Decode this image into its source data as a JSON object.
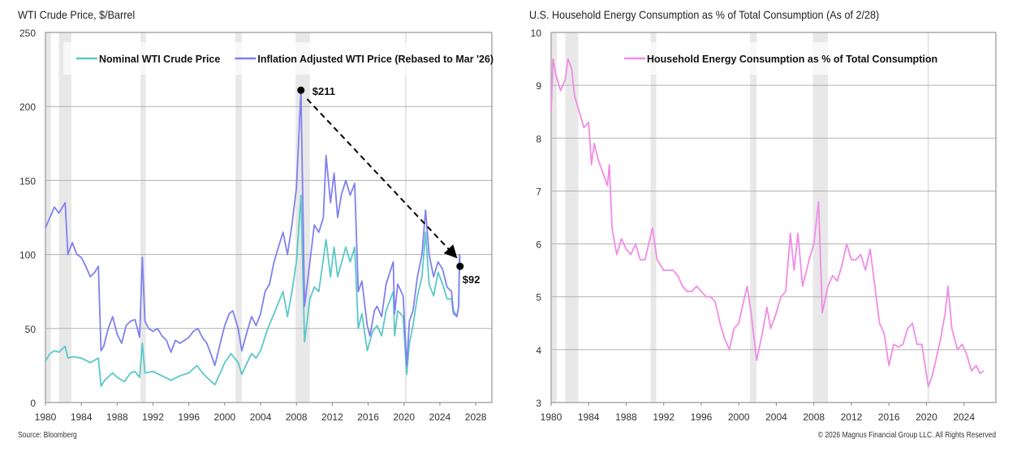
{
  "chart_data": [
    {
      "type": "line",
      "title": "WTI Crude Price, $/Barrel",
      "source": "Source: Bloomberg",
      "xlim": [
        1980,
        2029.8
      ],
      "ylim": [
        0,
        250
      ],
      "xticks": [
        1980,
        1984,
        1988,
        1992,
        1996,
        2000,
        2004,
        2008,
        2012,
        2016,
        2020,
        2024,
        2028
      ],
      "yticks": [
        0,
        50,
        100,
        150,
        200,
        250
      ],
      "grid": true,
      "legend_position": "top",
      "recessions": [
        [
          1980.0,
          1980.6
        ],
        [
          1981.5,
          1982.9
        ],
        [
          1990.6,
          1991.2
        ],
        [
          2001.2,
          2001.9
        ],
        [
          2007.9,
          2009.5
        ],
        [
          2020.1,
          2020.3
        ]
      ],
      "annotations": [
        {
          "label": "$211",
          "x": 2008.5,
          "y": 211
        },
        {
          "label": "$92",
          "x": 2026.25,
          "y": 92
        }
      ],
      "arrow": {
        "from": [
          2009.2,
          205
        ],
        "to": [
          2025.7,
          99
        ]
      },
      "series": [
        {
          "name": "Nominal WTI Crude Price",
          "color": "#5bc8c8",
          "x": [
            1980,
            1980.5,
            1981,
            1981.5,
            1982.2,
            1982.5,
            1983,
            1984,
            1985,
            1985.9,
            1986.2,
            1986.6,
            1987.5,
            1988,
            1988.8,
            1989.5,
            1990,
            1990.5,
            1990.8,
            1991.1,
            1992,
            1993,
            1994,
            1995,
            1996,
            1996.9,
            1997.5,
            1998,
            1998.9,
            1999.5,
            2000,
            2000.7,
            2001.5,
            2001.9,
            2002.5,
            2003,
            2003.5,
            2004,
            2004.8,
            2005.5,
            2006.5,
            2007,
            2007.5,
            2008,
            2008.5,
            2008.9,
            2009.5,
            2010,
            2010.5,
            2011.3,
            2011.8,
            2012.2,
            2012.6,
            2013.5,
            2014,
            2014.5,
            2014.9,
            2015.3,
            2015.9,
            2016.5,
            2017,
            2017.5,
            2018,
            2018.8,
            2018.95,
            2019.3,
            2019.9,
            2020.3,
            2020.6,
            2021,
            2021.5,
            2022,
            2022.4,
            2022.8,
            2023.3,
            2023.8,
            2024.3,
            2024.8,
            2025.3,
            2025.5,
            2025.9,
            2026.1,
            2026.2,
            2026.25
          ],
          "y": [
            28,
            33,
            35,
            34,
            38,
            30,
            31,
            30,
            27,
            30,
            11,
            15,
            20,
            17,
            14,
            20,
            21,
            17,
            40,
            20,
            21,
            18,
            15,
            18,
            20,
            25,
            20,
            17,
            12,
            20,
            27,
            33,
            27,
            19,
            27,
            33,
            30,
            35,
            50,
            60,
            75,
            58,
            75,
            95,
            140,
            41,
            70,
            78,
            75,
            110,
            85,
            105,
            85,
            105,
            95,
            105,
            50,
            60,
            35,
            48,
            52,
            45,
            62,
            75,
            45,
            62,
            58,
            19,
            40,
            52,
            72,
            85,
            115,
            80,
            72,
            88,
            80,
            70,
            70,
            60,
            58,
            65,
            100,
            92
          ]
        },
        {
          "name": "Inflation Adjusted WTI Price (Rebased to Mar '26)",
          "color": "#8080f0",
          "x": [
            1980,
            1980.5,
            1981,
            1981.5,
            1982.2,
            1982.5,
            1983,
            1983.5,
            1984,
            1984.5,
            1985,
            1985.5,
            1985.9,
            1986.2,
            1986.5,
            1987,
            1987.5,
            1988,
            1988.5,
            1989,
            1989.5,
            1990,
            1990.5,
            1990.8,
            1991.1,
            1991.5,
            1992,
            1992.5,
            1993,
            1993.5,
            1994,
            1994.5,
            1995,
            1995.5,
            1996,
            1996.5,
            1997,
            1997.5,
            1998,
            1998.5,
            1998.9,
            1999.5,
            2000,
            2000.5,
            2000.9,
            2001.5,
            2001.9,
            2002.5,
            2003,
            2003.5,
            2004,
            2004.5,
            2005,
            2005.5,
            2006,
            2006.5,
            2007,
            2007.5,
            2008,
            2008.5,
            2008.9,
            2009.5,
            2010,
            2010.5,
            2011,
            2011.3,
            2011.8,
            2012.2,
            2012.6,
            2013,
            2013.5,
            2014,
            2014.5,
            2014.9,
            2015.3,
            2015.9,
            2016.2,
            2016.7,
            2017,
            2017.5,
            2018,
            2018.8,
            2018.95,
            2019.3,
            2019.9,
            2020.3,
            2020.6,
            2021,
            2021.5,
            2022,
            2022.4,
            2022.8,
            2023.3,
            2023.8,
            2024.3,
            2024.8,
            2025.3,
            2025.5,
            2025.9,
            2026.1,
            2026.2,
            2026.25
          ],
          "y": [
            118,
            125,
            132,
            128,
            135,
            100,
            108,
            100,
            98,
            92,
            85,
            88,
            92,
            35,
            38,
            50,
            58,
            46,
            40,
            52,
            55,
            56,
            44,
            98,
            55,
            50,
            48,
            50,
            45,
            42,
            34,
            42,
            40,
            42,
            44,
            48,
            50,
            44,
            40,
            32,
            25,
            40,
            52,
            60,
            62,
            50,
            35,
            48,
            58,
            52,
            60,
            75,
            80,
            95,
            105,
            115,
            100,
            120,
            145,
            211,
            65,
            95,
            120,
            115,
            125,
            167,
            135,
            155,
            125,
            140,
            150,
            140,
            148,
            75,
            82,
            52,
            45,
            62,
            65,
            58,
            80,
            95,
            60,
            80,
            72,
            25,
            55,
            62,
            85,
            100,
            130,
            100,
            85,
            95,
            90,
            78,
            75,
            62,
            58,
            65,
            100,
            92
          ]
        }
      ]
    },
    {
      "type": "line",
      "title": "U.S. Household Energy Consumption as % of Total Consumption (As of 2/28)",
      "copyright": "© 2026 Magnus Financial Group LLC. All Rights Reserved",
      "xlim": [
        1980,
        2027.4
      ],
      "ylim": [
        3,
        10
      ],
      "xticks": [
        1980,
        1984,
        1988,
        1992,
        1996,
        2000,
        2004,
        2008,
        2012,
        2016,
        2020,
        2024
      ],
      "yticks": [
        3,
        4,
        5,
        6,
        7,
        8,
        9,
        10
      ],
      "grid": true,
      "legend_position": "top",
      "recessions": [
        [
          1980.0,
          1980.6
        ],
        [
          1981.5,
          1982.9
        ],
        [
          1990.6,
          1991.2
        ],
        [
          2001.2,
          2001.9
        ],
        [
          2007.9,
          2009.5
        ],
        [
          2020.1,
          2020.3
        ]
      ],
      "series": [
        {
          "name": "Household Energy Consumption as % of Total Consumption",
          "color": "#f08ce6",
          "x": [
            1980,
            1980.2,
            1980.5,
            1981,
            1981.5,
            1981.8,
            1982.2,
            1982.5,
            1983,
            1983.5,
            1984,
            1984.3,
            1984.6,
            1985,
            1985.5,
            1986,
            1986.2,
            1986.5,
            1987,
            1987.5,
            1988,
            1988.5,
            1989,
            1989.5,
            1990,
            1990.8,
            1991.3,
            1992,
            1992.5,
            1993,
            1993.5,
            1994,
            1994.5,
            1995,
            1995.5,
            1996,
            1996.5,
            1997,
            1997.5,
            1998,
            1998.5,
            1999,
            1999.5,
            2000,
            2000.5,
            2000.9,
            2001.3,
            2001.9,
            2002.5,
            2003,
            2003.4,
            2004,
            2004.5,
            2005,
            2005.5,
            2005.9,
            2006.3,
            2006.8,
            2007.5,
            2008,
            2008.5,
            2008.9,
            2009.5,
            2010,
            2010.5,
            2011,
            2011.5,
            2012,
            2012.5,
            2013,
            2013.5,
            2014,
            2014.5,
            2015,
            2015.5,
            2016,
            2016.5,
            2017,
            2017.5,
            2018,
            2018.5,
            2019,
            2019.5,
            2020.2,
            2020.6,
            2021,
            2021.5,
            2022,
            2022.3,
            2022.7,
            2023.3,
            2023.8,
            2024.3,
            2024.8,
            2025.3,
            2025.7,
            2026.1
          ],
          "y": [
            8.5,
            9.5,
            9.2,
            8.9,
            9.1,
            9.5,
            9.3,
            8.8,
            8.5,
            8.2,
            8.3,
            7.5,
            7.9,
            7.6,
            7.35,
            7.1,
            7.5,
            6.3,
            5.8,
            6.1,
            5.9,
            5.8,
            6.0,
            5.7,
            5.7,
            6.3,
            5.7,
            5.5,
            5.5,
            5.5,
            5.4,
            5.2,
            5.1,
            5.1,
            5.2,
            5.1,
            5.0,
            5.0,
            4.9,
            4.5,
            4.2,
            4.0,
            4.4,
            4.5,
            4.9,
            5.2,
            4.7,
            3.8,
            4.3,
            4.8,
            4.4,
            4.7,
            5.0,
            5.1,
            6.2,
            5.5,
            6.2,
            5.2,
            5.7,
            6.0,
            6.8,
            4.7,
            5.2,
            5.4,
            5.3,
            5.6,
            6.0,
            5.7,
            5.7,
            5.8,
            5.5,
            5.9,
            5.2,
            4.5,
            4.3,
            3.7,
            4.1,
            4.05,
            4.1,
            4.4,
            4.5,
            4.1,
            4.1,
            3.3,
            3.5,
            3.8,
            4.2,
            4.7,
            5.2,
            4.4,
            4.0,
            4.1,
            3.9,
            3.6,
            3.7,
            3.55,
            3.6
          ]
        }
      ]
    }
  ]
}
